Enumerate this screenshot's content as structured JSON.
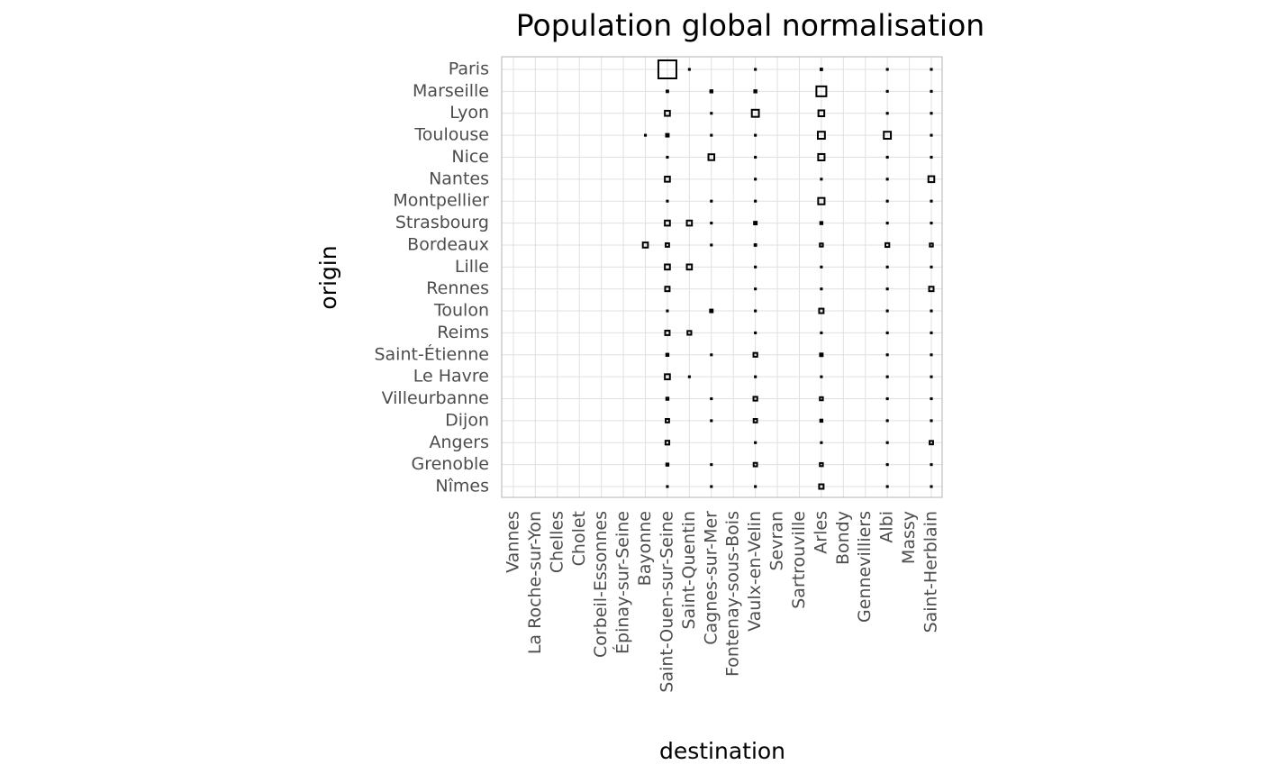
{
  "chart_data": {
    "type": "matrix",
    "title": "Population global normalisation",
    "x_label": "destination",
    "y_label": "origin",
    "x": [
      "Vannes",
      "La Roche-sur-Yon",
      "Chelles",
      "Cholet",
      "Corbeil-Essonnes",
      "Épinay-sur-Seine",
      "Bayonne",
      "Saint-Ouen-sur-Seine",
      "Saint-Quentin",
      "Cagnes-sur-Mer",
      "Fontenay-sous-Bois",
      "Vaulx-en-Velin",
      "Sevran",
      "Sartrouville",
      "Arles",
      "Bondy",
      "Gennevilliers",
      "Albi",
      "Massy",
      "Saint-Herblain"
    ],
    "y": [
      "Paris",
      "Marseille",
      "Lyon",
      "Toulouse",
      "Nice",
      "Nantes",
      "Montpellier",
      "Strasbourg",
      "Bordeaux",
      "Lille",
      "Rennes",
      "Toulon",
      "Reims",
      "Saint-Étienne",
      "Le Havre",
      "Villeurbanne",
      "Dijon",
      "Angers",
      "Grenoble",
      "Nîmes"
    ],
    "color": "#000000",
    "grid": true,
    "values": [
      [
        null,
        null,
        null,
        null,
        null,
        null,
        null,
        1,
        0.02,
        null,
        null,
        0.02,
        null,
        null,
        0.03,
        null,
        null,
        0.02,
        null,
        0.02
      ],
      [
        null,
        null,
        null,
        null,
        null,
        null,
        null,
        0.03,
        null,
        0.04,
        null,
        0.04,
        null,
        null,
        0.35,
        null,
        null,
        0.02,
        null,
        0.02
      ],
      [
        null,
        null,
        null,
        null,
        null,
        null,
        null,
        0.12,
        null,
        0.02,
        null,
        0.2,
        null,
        null,
        0.15,
        null,
        null,
        0.02,
        null,
        0.02
      ],
      [
        null,
        null,
        null,
        null,
        null,
        null,
        0.02,
        0.05,
        null,
        0.02,
        null,
        0.02,
        null,
        null,
        0.2,
        null,
        null,
        0.2,
        null,
        0.02
      ],
      [
        null,
        null,
        null,
        null,
        null,
        null,
        null,
        0.02,
        null,
        0.15,
        null,
        0.02,
        null,
        null,
        0.17,
        null,
        null,
        0.02,
        null,
        0.02
      ],
      [
        null,
        null,
        null,
        null,
        null,
        null,
        null,
        0.12,
        null,
        null,
        null,
        0.02,
        null,
        null,
        0.02,
        null,
        null,
        0.02,
        null,
        0.15
      ],
      [
        null,
        null,
        null,
        null,
        null,
        null,
        null,
        0.02,
        null,
        0.02,
        null,
        0.02,
        null,
        null,
        0.17,
        null,
        null,
        0.02,
        null,
        0.02
      ],
      [
        null,
        null,
        null,
        null,
        null,
        null,
        null,
        0.12,
        0.12,
        0.02,
        null,
        0.05,
        null,
        null,
        0.04,
        null,
        null,
        0.02,
        null,
        0.02
      ],
      [
        null,
        null,
        null,
        null,
        null,
        null,
        0.12,
        0.07,
        null,
        0.02,
        null,
        0.03,
        null,
        null,
        0.06,
        null,
        null,
        0.08,
        null,
        0.06
      ],
      [
        null,
        null,
        null,
        null,
        null,
        null,
        null,
        0.12,
        0.12,
        null,
        null,
        0.02,
        null,
        null,
        0.02,
        null,
        null,
        0.02,
        null,
        0.02
      ],
      [
        null,
        null,
        null,
        null,
        null,
        null,
        null,
        0.1,
        null,
        null,
        null,
        0.02,
        null,
        null,
        0.02,
        null,
        null,
        0.02,
        null,
        0.1
      ],
      [
        null,
        null,
        null,
        null,
        null,
        null,
        null,
        0.02,
        null,
        0.05,
        null,
        0.02,
        null,
        null,
        0.1,
        null,
        null,
        0.02,
        null,
        0.02
      ],
      [
        null,
        null,
        null,
        null,
        null,
        null,
        null,
        0.1,
        0.08,
        null,
        null,
        0.02,
        null,
        null,
        0.02,
        null,
        null,
        0.02,
        null,
        0.02
      ],
      [
        null,
        null,
        null,
        null,
        null,
        null,
        null,
        0.04,
        null,
        0.02,
        null,
        0.08,
        null,
        null,
        0.05,
        null,
        null,
        0.02,
        null,
        0.02
      ],
      [
        null,
        null,
        null,
        null,
        null,
        null,
        null,
        0.12,
        0.02,
        null,
        null,
        0.02,
        null,
        null,
        0.02,
        null,
        null,
        0.02,
        null,
        0.02
      ],
      [
        null,
        null,
        null,
        null,
        null,
        null,
        null,
        0.04,
        null,
        0.02,
        null,
        0.08,
        null,
        null,
        0.06,
        null,
        null,
        0.02,
        null,
        0.02
      ],
      [
        null,
        null,
        null,
        null,
        null,
        null,
        null,
        0.07,
        null,
        0.02,
        null,
        0.07,
        null,
        null,
        0.04,
        null,
        null,
        0.02,
        null,
        0.02
      ],
      [
        null,
        null,
        null,
        null,
        null,
        null,
        null,
        0.08,
        null,
        null,
        null,
        0.02,
        null,
        null,
        0.02,
        null,
        null,
        0.02,
        null,
        0.07
      ],
      [
        null,
        null,
        null,
        null,
        null,
        null,
        null,
        0.04,
        null,
        0.02,
        null,
        0.07,
        null,
        null,
        0.06,
        null,
        null,
        0.02,
        null,
        0.02
      ],
      [
        null,
        null,
        null,
        null,
        null,
        null,
        null,
        0.02,
        null,
        0.02,
        null,
        0.02,
        null,
        null,
        0.1,
        null,
        null,
        0.02,
        null,
        0.02
      ]
    ]
  }
}
